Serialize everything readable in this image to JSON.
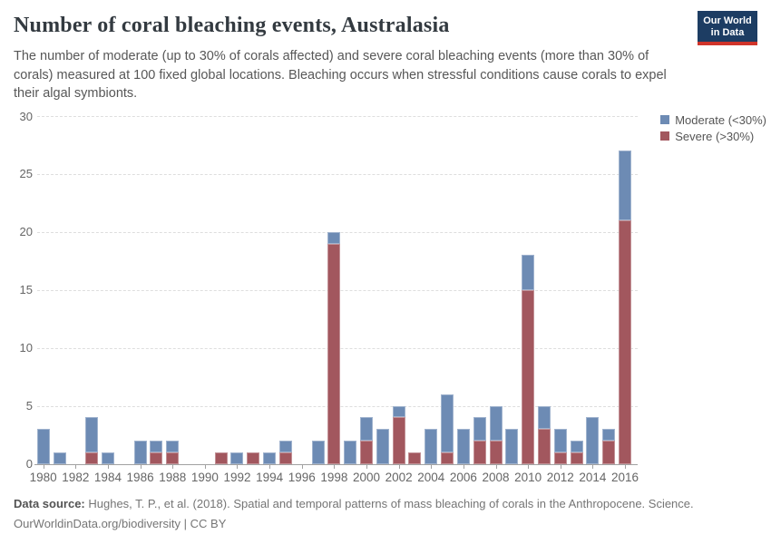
{
  "header": {
    "title": "Number of coral bleaching events, Australasia",
    "subtitle": "The number of moderate (up to 30% of corals affected) and severe coral bleaching events (more than 30% of corals) measured at 100 fixed global locations. Bleaching occurs when stressful conditions cause corals to expel their algal symbionts."
  },
  "logo": {
    "line1": "Our World",
    "line2": "in Data",
    "background": "#1d3d63",
    "stripe": "#d0342a"
  },
  "legend": {
    "items": [
      {
        "label": "Moderate (<30%)",
        "color": "#6d8bb4"
      },
      {
        "label": "Severe (>30%)",
        "color": "#a2575e"
      }
    ]
  },
  "chart_data": {
    "type": "bar",
    "stacked": true,
    "title": "Number of coral bleaching events, Australasia",
    "xlabel": "",
    "ylabel": "",
    "ylim": [
      0,
      30
    ],
    "yticks": [
      0,
      5,
      10,
      15,
      20,
      25,
      30
    ],
    "xtick_label_step": 2,
    "grid": "horizontal-dashed",
    "legend_position": "top-right",
    "categories": [
      1980,
      1981,
      1982,
      1983,
      1984,
      1985,
      1986,
      1987,
      1988,
      1989,
      1990,
      1991,
      1992,
      1993,
      1994,
      1995,
      1996,
      1997,
      1998,
      1999,
      2000,
      2001,
      2002,
      2003,
      2004,
      2005,
      2006,
      2007,
      2008,
      2009,
      2010,
      2011,
      2012,
      2013,
      2014,
      2015,
      2016
    ],
    "series": [
      {
        "name": "Severe (>30%)",
        "color": "#a2575e",
        "values": [
          0,
          0,
          0,
          1,
          0,
          0,
          0,
          1,
          1,
          0,
          0,
          1,
          0,
          1,
          0,
          1,
          0,
          0,
          19,
          0,
          2,
          0,
          4,
          1,
          0,
          1,
          0,
          2,
          2,
          0,
          15,
          3,
          1,
          1,
          0,
          2,
          21
        ]
      },
      {
        "name": "Moderate (<30%)",
        "color": "#6d8bb4",
        "values": [
          3,
          1,
          0,
          3,
          1,
          0,
          2,
          1,
          1,
          0,
          0,
          0,
          1,
          0,
          1,
          1,
          0,
          2,
          1,
          2,
          2,
          3,
          1,
          0,
          3,
          5,
          3,
          2,
          3,
          3,
          3,
          2,
          2,
          1,
          4,
          1,
          6
        ]
      }
    ],
    "totals_note": {
      "1998": 20,
      "2010": 18,
      "2016": 27
    }
  },
  "footer": {
    "source_label": "Data source:",
    "source_text": "Hughes, T. P., et al. (2018). Spatial and temporal patterns of mass bleaching of corals in the Anthropocene. Science.",
    "link": "OurWorldinData.org/biodiversity",
    "separator": "|",
    "license": "CC BY"
  }
}
